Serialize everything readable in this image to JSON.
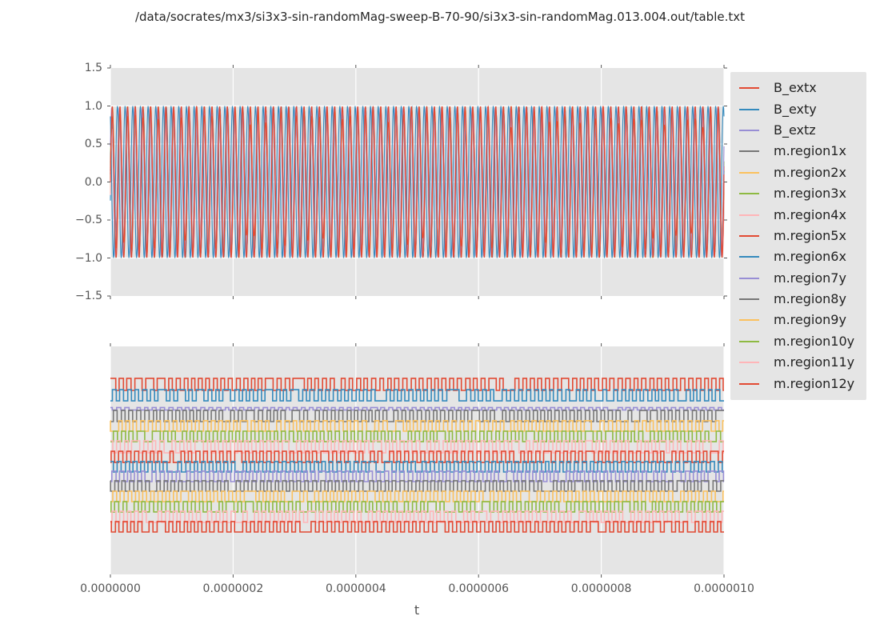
{
  "title": "/data/socrates/mx3/si3x3-sin-randomMag-sweep-B-70-90/si3x3-sin-randomMag.013.004.out/table.txt",
  "colors": {
    "cycle": [
      "#E24A33",
      "#348ABD",
      "#988ED5",
      "#777777",
      "#FBC15E",
      "#8EBA42",
      "#FFB5B8"
    ],
    "axes_background": "#e5e5e5",
    "grid": "#ffffff",
    "tick": "#555555",
    "text": "#262626"
  },
  "legend": {
    "entries": [
      {
        "label": "B_extx",
        "color": "#E24A33"
      },
      {
        "label": "B_exty",
        "color": "#348ABD"
      },
      {
        "label": "B_extz",
        "color": "#988ED5"
      },
      {
        "label": "m.region1x",
        "color": "#777777"
      },
      {
        "label": "m.region2x",
        "color": "#FBC15E"
      },
      {
        "label": "m.region3x",
        "color": "#8EBA42"
      },
      {
        "label": "m.region4x",
        "color": "#FFB5B8"
      },
      {
        "label": "m.region5x",
        "color": "#E24A33"
      },
      {
        "label": "m.region6x",
        "color": "#348ABD"
      },
      {
        "label": "m.region7y",
        "color": "#988ED5"
      },
      {
        "label": "m.region8y",
        "color": "#777777"
      },
      {
        "label": "m.region9y",
        "color": "#FBC15E"
      },
      {
        "label": "m.region10y",
        "color": "#8EBA42"
      },
      {
        "label": "m.region11y",
        "color": "#FFB5B8"
      },
      {
        "label": "m.region12y",
        "color": "#E24A33"
      }
    ]
  },
  "xaxis": {
    "label": "t",
    "tick_labels": [
      "0.0000000",
      "0.0000002",
      "0.0000004",
      "0.0000006",
      "0.0000008",
      "0.0000010"
    ],
    "lim": [
      0,
      1e-06
    ]
  },
  "chart_data": [
    {
      "type": "line",
      "subplot": "top",
      "ylim": [
        -1.5,
        1.5
      ],
      "ytick_labels": [
        "1.5",
        "1.0",
        "0.5",
        "0.0",
        "−0.5",
        "−1.0",
        "−1.5"
      ],
      "grid": "horizontal+vertical, white",
      "cycles_visible": 80,
      "series": [
        {
          "name": "B_extx",
          "color": "#E24A33",
          "waveform": "sine",
          "amplitude": 1.0,
          "phase": 0.0
        },
        {
          "name": "B_exty",
          "color": "#348ABD",
          "waveform": "sine",
          "amplitude": 1.0,
          "phase": 2.1
        },
        {
          "name": "B_extz",
          "color": "#988ED5",
          "waveform": "sine",
          "amplitude": 0.98,
          "phase": 0.5
        },
        {
          "name": "m.region1x",
          "color": "#777777",
          "waveform": "sine-random-mag",
          "amplitude_range": [
            0.62,
            1.0
          ],
          "phase": 0.15
        },
        {
          "name": "m.region2x",
          "color": "#FBC15E",
          "waveform": "sine-random-mag",
          "amplitude_range": [
            0.62,
            1.0
          ],
          "phase": -0.2
        },
        {
          "name": "m.region3x",
          "color": "#8EBA42",
          "waveform": "sine-random-mag",
          "amplitude_range": [
            0.62,
            1.0
          ],
          "phase": 0.3
        },
        {
          "name": "m.region4x",
          "color": "#FFB5B8",
          "waveform": "sine-random-mag",
          "amplitude_range": [
            0.62,
            1.0
          ],
          "phase": -0.1
        },
        {
          "name": "m.region5x",
          "color": "#E24A33",
          "waveform": "sine-random-mag",
          "amplitude_range": [
            0.62,
            1.0
          ],
          "phase": 0.25
        },
        {
          "name": "m.region6x",
          "color": "#348ABD",
          "waveform": "sine-random-mag",
          "amplitude_range": [
            0.62,
            1.0
          ],
          "phase": -0.3
        },
        {
          "name": "m.region7y",
          "color": "#988ED5",
          "waveform": "sine-random-mag",
          "amplitude_range": [
            0.62,
            1.0
          ],
          "phase": 0.1
        },
        {
          "name": "m.region8y",
          "color": "#777777",
          "waveform": "sine-random-mag",
          "amplitude_range": [
            0.62,
            1.0
          ],
          "phase": 0.2
        },
        {
          "name": "m.region9y",
          "color": "#FBC15E",
          "waveform": "sine-random-mag",
          "amplitude_range": [
            0.62,
            1.0
          ],
          "phase": -0.15
        },
        {
          "name": "m.region10y",
          "color": "#8EBA42",
          "waveform": "sine-random-mag",
          "amplitude_range": [
            0.62,
            1.0
          ],
          "phase": 0.05
        },
        {
          "name": "m.region11y",
          "color": "#FFB5B8",
          "waveform": "sine-random-mag",
          "amplitude_range": [
            0.62,
            1.0
          ],
          "phase": -0.25
        },
        {
          "name": "m.region12y",
          "color": "#E24A33",
          "waveform": "sine-random-mag",
          "amplitude_range": [
            0.62,
            1.0
          ],
          "phase": 0.12
        }
      ]
    },
    {
      "type": "line",
      "subplot": "bottom",
      "ylim": [
        0,
        1
      ],
      "ytick_labels": [],
      "grid": "vertical only, white",
      "cycles_visible": 80,
      "series": [
        {
          "name": "B_extx",
          "color": "#E24A33",
          "waveform": "square",
          "high": 0.86,
          "low": 0.807
        },
        {
          "name": "B_exty",
          "color": "#348ABD",
          "waveform": "square",
          "high": 0.81,
          "low": 0.761
        },
        {
          "name": "B_extz",
          "color": "#988ED5",
          "waveform": "square",
          "high": 0.732,
          "low": 0.721
        },
        {
          "name": "m.region1x",
          "color": "#777777",
          "waveform": "square",
          "high": 0.719,
          "low": 0.67
        },
        {
          "name": "m.region2x",
          "color": "#FBC15E",
          "waveform": "square",
          "high": 0.674,
          "low": 0.628
        },
        {
          "name": "m.region3x",
          "color": "#8EBA42",
          "waveform": "square",
          "high": 0.628,
          "low": 0.582
        },
        {
          "name": "m.region4x",
          "color": "#FFB5B8",
          "waveform": "square",
          "high": 0.586,
          "low": 0.533
        },
        {
          "name": "m.region5x",
          "color": "#E24A33",
          "waveform": "square",
          "high": 0.54,
          "low": 0.491
        },
        {
          "name": "m.region6x",
          "color": "#348ABD",
          "waveform": "square",
          "high": 0.495,
          "low": 0.449
        },
        {
          "name": "m.region7y",
          "color": "#988ED5",
          "waveform": "square",
          "high": 0.453,
          "low": 0.407
        },
        {
          "name": "m.region8y",
          "color": "#777777",
          "waveform": "square",
          "high": 0.411,
          "low": 0.365
        },
        {
          "name": "m.region9y",
          "color": "#FBC15E",
          "waveform": "square",
          "high": 0.365,
          "low": 0.319
        },
        {
          "name": "m.region10y",
          "color": "#8EBA42",
          "waveform": "square",
          "high": 0.319,
          "low": 0.274
        },
        {
          "name": "m.region11y",
          "color": "#FFB5B8",
          "waveform": "square",
          "high": 0.277,
          "low": 0.228
        },
        {
          "name": "m.region12y",
          "color": "#E24A33",
          "waveform": "square",
          "high": 0.232,
          "low": 0.186
        }
      ]
    }
  ]
}
